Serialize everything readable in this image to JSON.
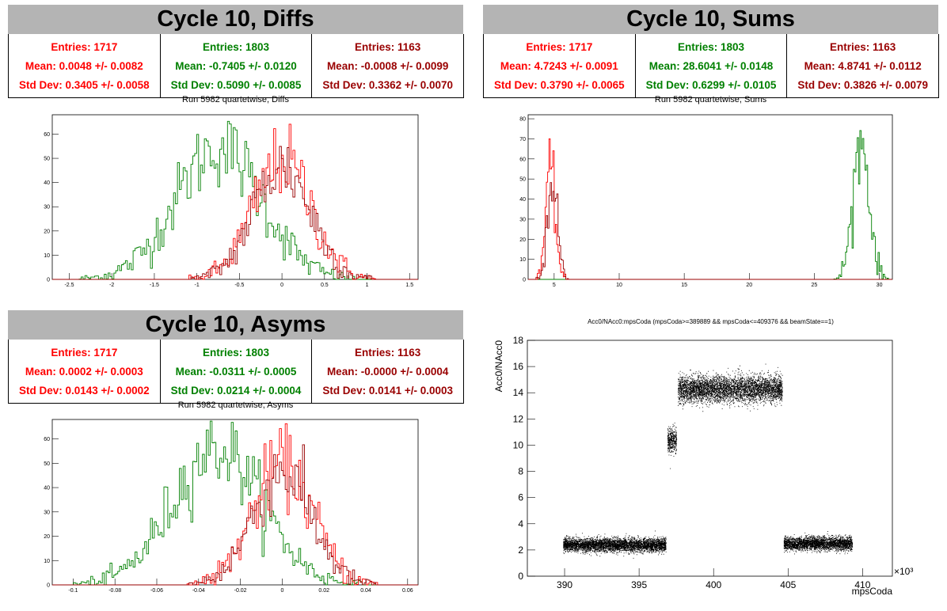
{
  "colors": {
    "red": "#ff0000",
    "green": "#008000",
    "darkred": "#990000",
    "header_bg": "#b4b4b4"
  },
  "panels": [
    {
      "title": "Cycle 10, Diffs",
      "subtitle": "Run 5982 quartetwise, Diffs",
      "stats": [
        {
          "entries": "Entries: 1717",
          "mean": "Mean: 0.0048 +/- 0.0082",
          "std": "Std Dev: 0.3405 +/- 0.0058"
        },
        {
          "entries": "Entries: 1803",
          "mean": "Mean: -0.7405 +/- 0.0120",
          "std": "Std Dev: 0.5090 +/- 0.0085"
        },
        {
          "entries": "Entries: 1163",
          "mean": "Mean: -0.0008 +/- 0.0099",
          "std": "Std Dev: 0.3362 +/- 0.0070"
        }
      ]
    },
    {
      "title": "Cycle 10, Sums",
      "subtitle": "Run 5982 quartetwise, Sums",
      "stats": [
        {
          "entries": "Entries: 1717",
          "mean": "Mean: 4.7243 +/- 0.0091",
          "std": "Std Dev: 0.3790 +/- 0.0065"
        },
        {
          "entries": "Entries: 1803",
          "mean": "Mean: 28.6041 +/- 0.0148",
          "std": "Std Dev: 0.6299 +/- 0.0105"
        },
        {
          "entries": "Entries: 1163",
          "mean": "Mean: 4.8741 +/- 0.0112",
          "std": "Std Dev: 0.3826 +/- 0.0079"
        }
      ]
    },
    {
      "title": "Cycle 10, Asyms",
      "subtitle": "Run 5982 quartetwise, Asyms",
      "stats": [
        {
          "entries": "Entries: 1717",
          "mean": "Mean: 0.0002 +/- 0.0003",
          "std": "Std Dev: 0.0143 +/- 0.0002"
        },
        {
          "entries": "Entries: 1803",
          "mean": "Mean: -0.0311 +/- 0.0005",
          "std": "Std Dev: 0.0214 +/- 0.0004"
        },
        {
          "entries": "Entries: 1163",
          "mean": "Mean: -0.0000 +/- 0.0004",
          "std": "Std Dev: 0.0141 +/- 0.0003"
        }
      ]
    }
  ],
  "chart_data": [
    {
      "type": "line",
      "subtype": "histogram",
      "title": "Run 5982 quartetwise, Diffs",
      "xlim": [
        -2.7,
        1.6
      ],
      "ylim": [
        0,
        68
      ],
      "xticks": [
        -2.5,
        -2,
        -1.5,
        -1,
        -0.5,
        0,
        0.5,
        1,
        1.5
      ],
      "yticks": [
        0,
        10,
        20,
        30,
        40,
        50,
        60
      ],
      "series": [
        {
          "color": "green",
          "mean": -0.7405,
          "std": 0.509,
          "entries": 1803,
          "peak": 64
        },
        {
          "color": "red",
          "mean": 0.0048,
          "std": 0.3405,
          "entries": 1717,
          "peak": 58
        },
        {
          "color": "darkred",
          "mean": -0.0008,
          "std": 0.3362,
          "entries": 1163,
          "peak": 55
        }
      ]
    },
    {
      "type": "line",
      "subtype": "histogram",
      "title": "Run 5982 quartetwise, Sums",
      "xlim": [
        3,
        31
      ],
      "ylim": [
        0,
        82
      ],
      "xticks": [
        5,
        10,
        15,
        20,
        25,
        30
      ],
      "yticks": [
        0,
        10,
        20,
        30,
        40,
        50,
        60,
        70,
        80
      ],
      "series": [
        {
          "color": "green",
          "mean": 28.6041,
          "std": 0.6299,
          "entries": 1803,
          "peak": 80
        },
        {
          "color": "red",
          "mean": 4.7243,
          "std": 0.379,
          "entries": 1717,
          "peak": 62
        },
        {
          "color": "darkred",
          "mean": 4.8741,
          "std": 0.3826,
          "entries": 1163,
          "peak": 60
        }
      ]
    },
    {
      "type": "line",
      "subtype": "histogram",
      "title": "Run 5982 quartetwise, Asyms",
      "xlim": [
        -0.11,
        0.065
      ],
      "ylim": [
        0,
        68
      ],
      "xticks": [
        -0.1,
        -0.08,
        -0.06,
        -0.04,
        -0.02,
        0,
        0.02,
        0.04,
        0.06
      ],
      "yticks": [
        0,
        10,
        20,
        30,
        40,
        50,
        60
      ],
      "series": [
        {
          "color": "green",
          "mean": -0.0311,
          "std": 0.0214,
          "entries": 1803,
          "peak": 66
        },
        {
          "color": "red",
          "mean": 0.0002,
          "std": 0.0143,
          "entries": 1717,
          "peak": 58
        },
        {
          "color": "darkred",
          "mean": 0.0,
          "std": 0.0141,
          "entries": 1163,
          "peak": 55
        }
      ]
    },
    {
      "type": "scatter",
      "title": "Acc0/NAcc0:mpsCoda (mpsCoda>=389889 && mpsCoda<=409376 && beamState==1)",
      "xlabel": "mpsCoda",
      "ylabel": "Acc0/NAcc0",
      "x_exponent": "×10³",
      "xlim": [
        387.5,
        412
      ],
      "ylim": [
        0,
        18
      ],
      "xticks": [
        390,
        395,
        400,
        405,
        410
      ],
      "yticks": [
        0,
        2,
        4,
        6,
        8,
        10,
        12,
        14,
        16,
        18
      ],
      "clusters": [
        {
          "x": [
            389.9,
            396.8
          ],
          "y_center": 2.4,
          "y_spread": 0.5
        },
        {
          "x": [
            396.9,
            397.5
          ],
          "y_center": 10.4,
          "y_spread": 0.9
        },
        {
          "x": [
            397.6,
            404.6
          ],
          "y_center": 14.3,
          "y_spread": 1.0
        },
        {
          "x": [
            404.7,
            409.3
          ],
          "y_center": 2.5,
          "y_spread": 0.5
        }
      ]
    }
  ]
}
